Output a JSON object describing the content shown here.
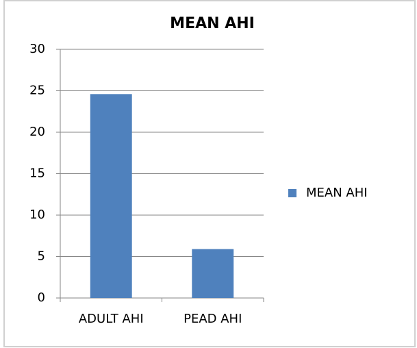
{
  "chart_data": {
    "type": "bar",
    "title": "MEAN AHI",
    "categories": [
      "ADULT AHI",
      "PEAD AHI"
    ],
    "series": [
      {
        "name": "MEAN AHI",
        "color": "#4f81bd",
        "values": [
          24.6,
          5.9
        ]
      }
    ],
    "ylim": [
      0,
      30
    ],
    "yticks": [
      0,
      5,
      10,
      15,
      20,
      25,
      30
    ],
    "grid": true,
    "legend": "right"
  }
}
